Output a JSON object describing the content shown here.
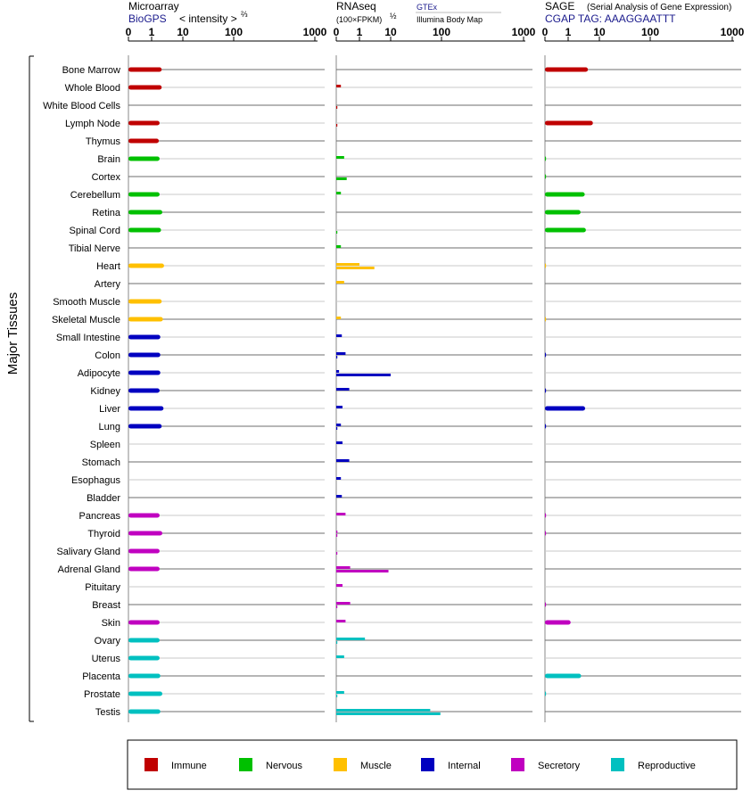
{
  "chart_data": {
    "type": "bar",
    "orientation": "horizontal",
    "y_axis_label": "Major Tissues",
    "categories": [
      "Bone Marrow",
      "Whole Blood",
      "White Blood Cells",
      "Lymph Node",
      "Thymus",
      "Brain",
      "Cortex",
      "Cerebellum",
      "Retina",
      "Spinal Cord",
      "Tibial Nerve",
      "Heart",
      "Artery",
      "Smooth Muscle",
      "Skeletal Muscle",
      "Small Intestine",
      "Colon",
      "Adipocyte",
      "Kidney",
      "Liver",
      "Lung",
      "Spleen",
      "Stomach",
      "Esophagus",
      "Bladder",
      "Pancreas",
      "Thyroid",
      "Salivary Gland",
      "Adrenal Gland",
      "Pituitary",
      "Breast",
      "Skin",
      "Ovary",
      "Uterus",
      "Placenta",
      "Prostate",
      "Testis"
    ],
    "groups": [
      {
        "name": "Immune",
        "color": "#c00000",
        "categories": [
          0,
          1,
          2,
          3,
          4
        ]
      },
      {
        "name": "Nervous",
        "color": "#00c000",
        "categories": [
          5,
          6,
          7,
          8,
          9,
          10
        ]
      },
      {
        "name": "Muscle",
        "color": "#ffc000",
        "categories": [
          11,
          12,
          13,
          14
        ]
      },
      {
        "name": "Internal",
        "color": "#0000c0",
        "categories": [
          15,
          16,
          17,
          18,
          19,
          20,
          21,
          22,
          23,
          24
        ]
      },
      {
        "name": "Secretory",
        "color": "#c000c0",
        "categories": [
          25,
          26,
          27,
          28,
          29,
          30,
          31
        ]
      },
      {
        "name": "Reproductive",
        "color": "#00c0c0",
        "categories": [
          32,
          33,
          34,
          35,
          36
        ]
      }
    ],
    "panels": [
      {
        "title": "Microarray",
        "subtitle": "BioGPS",
        "scale_label": "< intensity >",
        "scale_power": "⅔",
        "tick_labels": [
          "0",
          "1",
          "10",
          "100",
          "1000"
        ],
        "tick_values": [
          0,
          1,
          10,
          100,
          1000
        ],
        "xlim": [
          0,
          1000
        ],
        "values": [
          2.1,
          2.1,
          null,
          1.8,
          1.7,
          1.8,
          null,
          1.8,
          2.2,
          2.0,
          null,
          2.5,
          null,
          2.1,
          2.3,
          1.9,
          1.9,
          1.9,
          1.8,
          2.4,
          2.1,
          null,
          null,
          null,
          null,
          1.8,
          2.2,
          1.8,
          1.8,
          null,
          null,
          1.8,
          1.8,
          1.8,
          1.9,
          2.2,
          1.9
        ],
        "values2": null
      },
      {
        "title": "RNAseq",
        "scale_label": "(100×FPKM)",
        "scale_power": "½",
        "source1": "GTEx",
        "source2": "Illumina Body Map",
        "tick_labels": [
          "0",
          "1",
          "10",
          "100",
          "1000"
        ],
        "tick_values": [
          0,
          1,
          10,
          100,
          1000
        ],
        "xlim": [
          0,
          1000
        ],
        "values": [
          null,
          0.2,
          null,
          null,
          null,
          0.34,
          null,
          0.2,
          null,
          null,
          0.2,
          1.0,
          0.34,
          null,
          0.2,
          0.24,
          0.4,
          0.12,
          0.56,
          0.27,
          0.2,
          0.27,
          0.56,
          0.2,
          0.24,
          0.4,
          0.05,
          null,
          0.6,
          0.27,
          0.6,
          0.4,
          1.5,
          0.34,
          null,
          0.34,
          60
        ],
        "values2": [
          null,
          null,
          0.01,
          0.01,
          null,
          null,
          0.45,
          null,
          null,
          0.01,
          null,
          3.0,
          null,
          null,
          null,
          null,
          0.01,
          10.0,
          null,
          null,
          0.01,
          null,
          null,
          null,
          null,
          null,
          0.01,
          0.01,
          8.5,
          null,
          0.01,
          null,
          0.01,
          null,
          null,
          0.01,
          95
        ]
      },
      {
        "title": "SAGE",
        "subtitle_small": "(Serial Analysis of Gene Expression)",
        "subtitle": "CGAP TAG: AAAGGAATTT",
        "tick_labels": [
          "0",
          "1",
          "10",
          "100",
          "1000"
        ],
        "tick_values": [
          0,
          1,
          10,
          100,
          1000
        ],
        "xlim": [
          0,
          1000
        ],
        "values": [
          4.3,
          null,
          null,
          6.2,
          null,
          0.01,
          0.01,
          3.4,
          2.5,
          3.7,
          null,
          0.01,
          null,
          null,
          0.01,
          null,
          0.01,
          null,
          0.01,
          3.5,
          0.01,
          null,
          null,
          null,
          null,
          0.01,
          0.01,
          null,
          null,
          null,
          0.01,
          1.2,
          null,
          null,
          2.6,
          0.01,
          null
        ],
        "values2": null
      }
    ],
    "legend_position": "bottom"
  }
}
